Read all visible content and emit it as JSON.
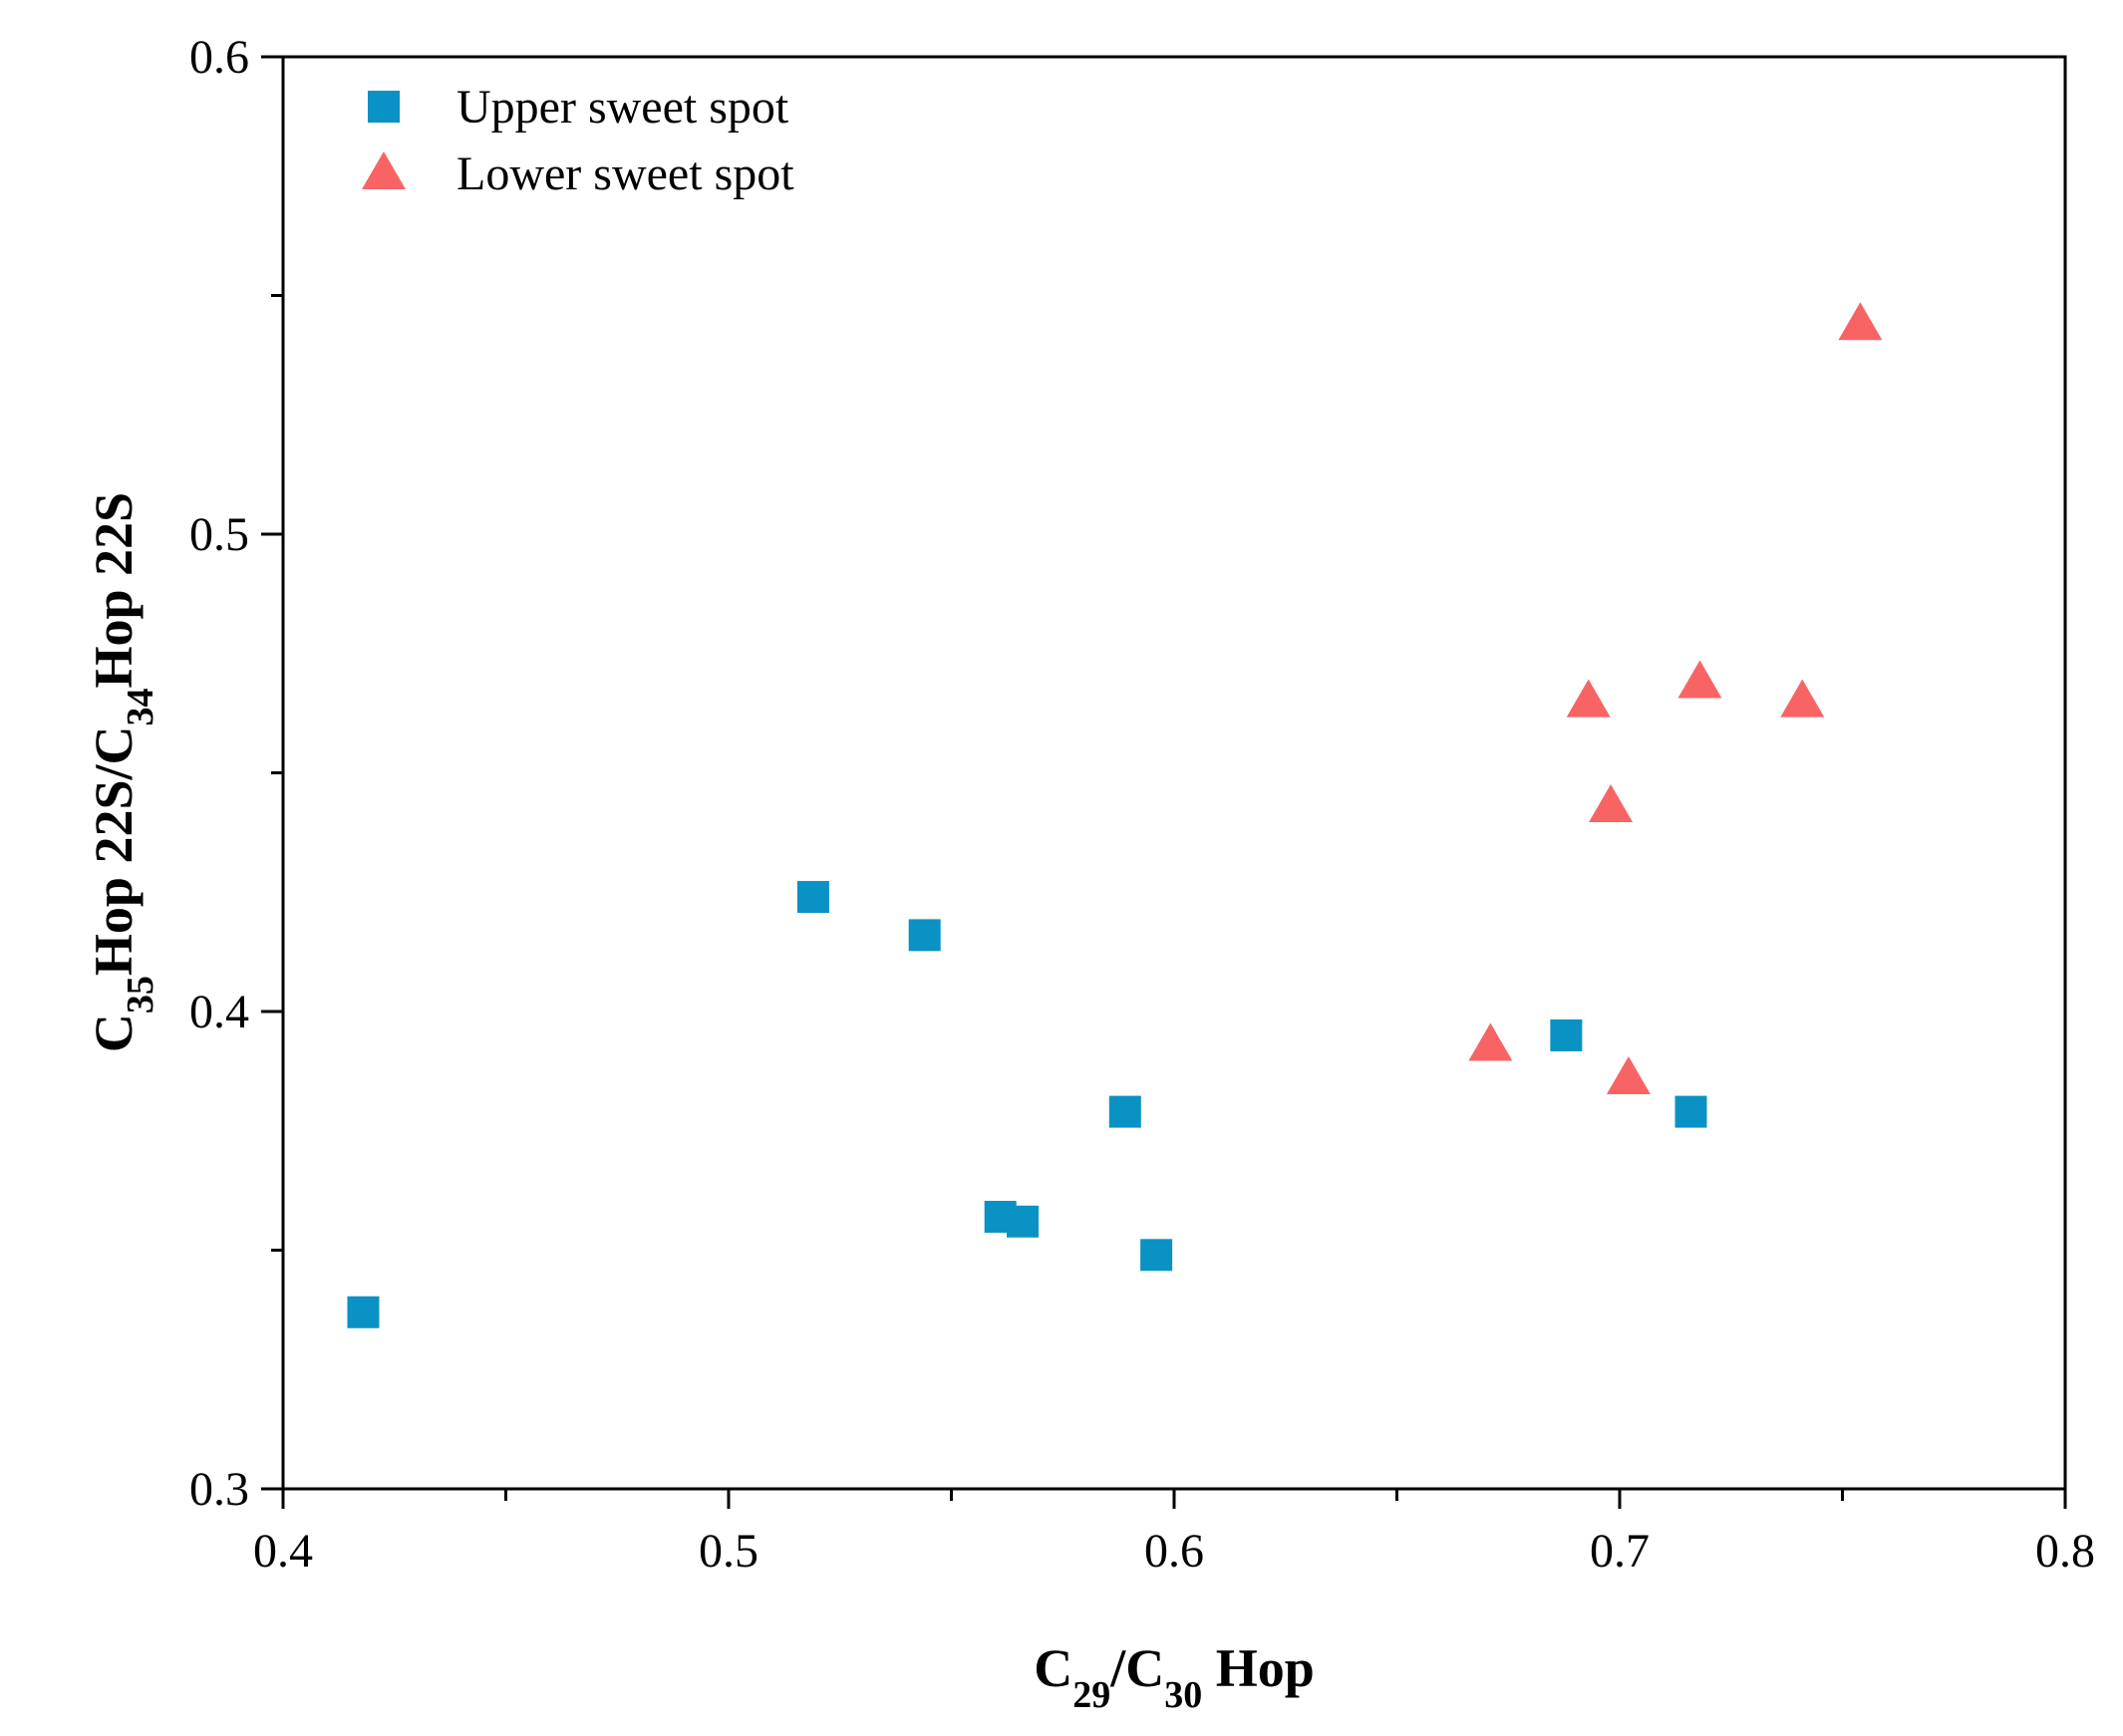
{
  "chart_data": {
    "type": "scatter",
    "xlabel": {
      "parts": [
        {
          "text": "C",
          "sub": false
        },
        {
          "text": "29",
          "sub": true
        },
        {
          "text": "/C",
          "sub": false
        },
        {
          "text": "30",
          "sub": true
        },
        {
          "text": " Hop",
          "sub": false
        }
      ]
    },
    "ylabel": {
      "parts": [
        {
          "text": "C",
          "sub": false
        },
        {
          "text": "35",
          "sub": true
        },
        {
          "text": "Hop 22S/C",
          "sub": false
        },
        {
          "text": "34",
          "sub": true
        },
        {
          "text": "Hop 22S",
          "sub": false
        }
      ]
    },
    "xlim": [
      0.4,
      0.8
    ],
    "ylim": [
      0.3,
      0.6
    ],
    "x_major_ticks": [
      0.4,
      0.5,
      0.6,
      0.7,
      0.8
    ],
    "x_tick_labels": [
      "0.4",
      "0.5",
      "0.6",
      "0.7",
      "0.8"
    ],
    "x_minor_ticks": [
      0.45,
      0.55,
      0.65,
      0.75
    ],
    "y_major_ticks": [
      0.3,
      0.4,
      0.5,
      0.6
    ],
    "y_tick_labels": [
      "0.3",
      "0.4",
      "0.5",
      "0.6"
    ],
    "y_minor_ticks": [
      0.35,
      0.45,
      0.55
    ],
    "grid": false,
    "legend_position": "top-left",
    "series": [
      {
        "name": "Upper sweet spot",
        "marker": "square",
        "color": "#0A92C4",
        "points": [
          {
            "x": 0.418,
            "y": 0.337
          },
          {
            "x": 0.519,
            "y": 0.424
          },
          {
            "x": 0.544,
            "y": 0.416
          },
          {
            "x": 0.561,
            "y": 0.357
          },
          {
            "x": 0.566,
            "y": 0.356
          },
          {
            "x": 0.589,
            "y": 0.379
          },
          {
            "x": 0.596,
            "y": 0.349
          },
          {
            "x": 0.688,
            "y": 0.395
          },
          {
            "x": 0.716,
            "y": 0.379
          }
        ]
      },
      {
        "name": "Lower sweet spot",
        "marker": "triangle",
        "color": "#F86464",
        "points": [
          {
            "x": 0.671,
            "y": 0.393
          },
          {
            "x": 0.693,
            "y": 0.465
          },
          {
            "x": 0.698,
            "y": 0.443
          },
          {
            "x": 0.702,
            "y": 0.386
          },
          {
            "x": 0.718,
            "y": 0.469
          },
          {
            "x": 0.741,
            "y": 0.465
          },
          {
            "x": 0.754,
            "y": 0.544
          }
        ]
      }
    ]
  }
}
